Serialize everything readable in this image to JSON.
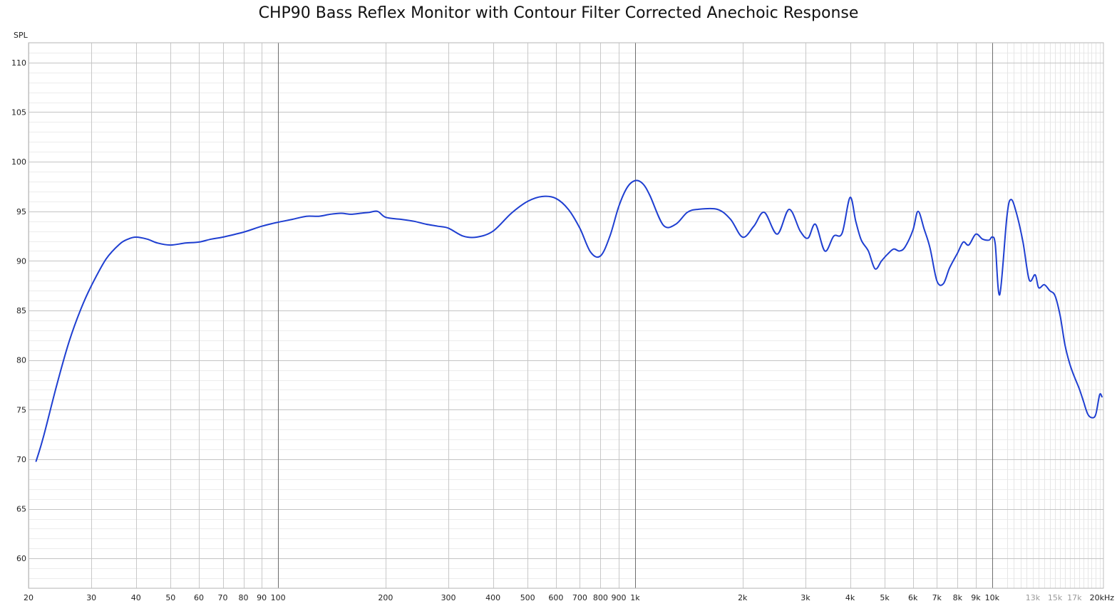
{
  "chart_data": {
    "type": "line",
    "title": "CHP90 Bass Reflex Monitor with Contour Filter Corrected Anechoic Response",
    "ylabel": "SPL",
    "xlabel": "",
    "x_scale": "log",
    "xlim": [
      20,
      20500
    ],
    "ylim": [
      57,
      112
    ],
    "grid": true,
    "legend": "none",
    "line_color": "#1f3fd1",
    "y_ticks": [
      {
        "value": 60,
        "label": "60"
      },
      {
        "value": 65,
        "label": "65"
      },
      {
        "value": 70,
        "label": "70"
      },
      {
        "value": 75,
        "label": "75"
      },
      {
        "value": 80,
        "label": "80"
      },
      {
        "value": 85,
        "label": "85"
      },
      {
        "value": 90,
        "label": "90"
      },
      {
        "value": 95,
        "label": "95"
      },
      {
        "value": 100,
        "label": "100"
      },
      {
        "value": 105,
        "label": "105"
      },
      {
        "value": 110,
        "label": "110"
      }
    ],
    "x_ticks": [
      {
        "value": 20,
        "label": "20"
      },
      {
        "value": 30,
        "label": "30"
      },
      {
        "value": 40,
        "label": "40"
      },
      {
        "value": 50,
        "label": "50"
      },
      {
        "value": 60,
        "label": "60"
      },
      {
        "value": 70,
        "label": "70"
      },
      {
        "value": 80,
        "label": "80"
      },
      {
        "value": 90,
        "label": "90"
      },
      {
        "value": 100,
        "label": "100"
      },
      {
        "value": 200,
        "label": "200"
      },
      {
        "value": 300,
        "label": "300"
      },
      {
        "value": 400,
        "label": "400"
      },
      {
        "value": 500,
        "label": "500"
      },
      {
        "value": 600,
        "label": "600"
      },
      {
        "value": 700,
        "label": "700"
      },
      {
        "value": 800,
        "label": "800"
      },
      {
        "value": 900,
        "label": "900"
      },
      {
        "value": 1000,
        "label": "1k"
      },
      {
        "value": 2000,
        "label": "2k"
      },
      {
        "value": 3000,
        "label": "3k"
      },
      {
        "value": 4000,
        "label": "4k"
      },
      {
        "value": 5000,
        "label": "5k"
      },
      {
        "value": 6000,
        "label": "6k"
      },
      {
        "value": 7000,
        "label": "7k"
      },
      {
        "value": 8000,
        "label": "8k"
      },
      {
        "value": 9000,
        "label": "9k"
      },
      {
        "value": 10000,
        "label": "10k"
      },
      {
        "value": 13000,
        "label": "13k",
        "muted": true
      },
      {
        "value": 15000,
        "label": "15k",
        "muted": true
      },
      {
        "value": 17000,
        "label": "17k",
        "muted": true
      },
      {
        "value": 20000,
        "label": "20kHz"
      }
    ],
    "series": [
      {
        "x": [
          21,
          22,
          24,
          26,
          28,
          30,
          33,
          36,
          38,
          40,
          43,
          46,
          50,
          55,
          60,
          65,
          70,
          80,
          90,
          100,
          110,
          120,
          130,
          140,
          150,
          160,
          170,
          180,
          190,
          200,
          220,
          240,
          260,
          280,
          300,
          330,
          360,
          400,
          450,
          500,
          550,
          600,
          650,
          700,
          750,
          800,
          850,
          900,
          950,
          1000,
          1050,
          1100,
          1200,
          1300,
          1400,
          1500,
          1700,
          1850,
          2000,
          2150,
          2300,
          2500,
          2700,
          2900,
          3050,
          3200,
          3400,
          3600,
          3800,
          4000,
          4150,
          4300,
          4500,
          4700,
          4900,
          5100,
          5300,
          5500,
          5700,
          6000,
          6200,
          6450,
          6700,
          7000,
          7300,
          7600,
          8000,
          8300,
          8600,
          9000,
          9400,
          9800,
          10000,
          10200,
          10500,
          11000,
          11300,
          11700,
          12200,
          12700,
          13200,
          13500,
          14000,
          14500,
          15000,
          15500,
          16000,
          16500,
          17000,
          17500,
          18000,
          18500,
          19000,
          19500,
          20000,
          20300
        ],
        "y": [
          69.8,
          72.2,
          77.5,
          81.9,
          85.1,
          87.5,
          90.2,
          91.7,
          92.2,
          92.4,
          92.2,
          91.8,
          91.6,
          91.8,
          91.9,
          92.2,
          92.4,
          92.9,
          93.5,
          93.9,
          94.2,
          94.5,
          94.5,
          94.7,
          94.8,
          94.7,
          94.8,
          94.9,
          95.0,
          94.4,
          94.2,
          94.0,
          93.7,
          93.5,
          93.3,
          92.5,
          92.4,
          93.0,
          94.8,
          96.0,
          96.5,
          96.3,
          95.2,
          93.3,
          90.9,
          90.5,
          92.5,
          95.5,
          97.4,
          98.1,
          97.8,
          96.6,
          93.6,
          93.7,
          94.9,
          95.2,
          95.2,
          94.2,
          92.4,
          93.5,
          94.9,
          92.7,
          95.2,
          93.0,
          92.3,
          93.7,
          91.0,
          92.5,
          92.8,
          96.4,
          94.0,
          92.1,
          91.0,
          89.2,
          90.0,
          90.7,
          91.2,
          91.0,
          91.4,
          93.1,
          95.0,
          93.2,
          91.3,
          88.0,
          87.7,
          89.3,
          90.8,
          91.9,
          91.6,
          92.7,
          92.2,
          92.1,
          92.4,
          91.7,
          86.6,
          94.5,
          96.2,
          94.8,
          91.9,
          88.1,
          88.6,
          87.3,
          87.6,
          87.0,
          86.5,
          84.5,
          81.5,
          79.6,
          78.3,
          77.2,
          75.9,
          74.6,
          74.2,
          74.5,
          76.5,
          76.3
        ]
      }
    ]
  }
}
